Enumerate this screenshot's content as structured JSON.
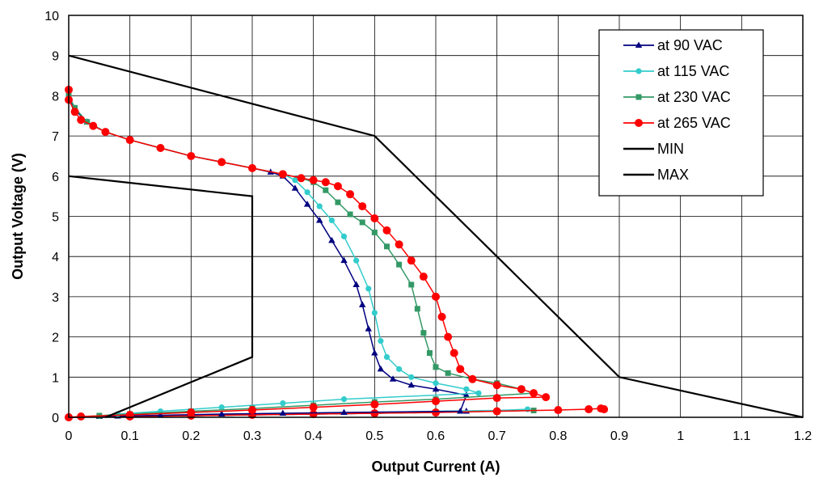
{
  "chart_data": {
    "type": "line",
    "title": "",
    "xlabel": "Output Current (A)",
    "ylabel": "Output Voltage (V)",
    "xlim": [
      0,
      1.2
    ],
    "ylim": [
      0,
      10
    ],
    "xticks": [
      "0",
      "0.1",
      "0.2",
      "0.3",
      "0.4",
      "0.5",
      "0.6",
      "0.7",
      "0.8",
      "0.9",
      "1",
      "1.1",
      "1.2"
    ],
    "yticks": [
      "0",
      "1",
      "2",
      "3",
      "4",
      "5",
      "6",
      "7",
      "8",
      "9",
      "10"
    ],
    "grid": true,
    "legend_position": "top-right",
    "series": [
      {
        "name": "at 90 VAC",
        "color": "#000080",
        "marker": "triangle",
        "x": [
          0.0,
          0.01,
          0.03,
          0.06,
          0.1,
          0.15,
          0.2,
          0.25,
          0.3,
          0.33,
          0.35,
          0.37,
          0.39,
          0.41,
          0.43,
          0.45,
          0.47,
          0.48,
          0.49,
          0.5,
          0.51,
          0.53,
          0.56,
          0.6,
          0.65,
          0.64,
          0.45,
          0.35,
          0.25,
          0.15,
          0.08,
          0.05,
          0.0
        ],
        "y": [
          8.0,
          7.65,
          7.35,
          7.1,
          6.9,
          6.7,
          6.5,
          6.35,
          6.2,
          6.1,
          6.0,
          5.7,
          5.3,
          4.9,
          4.4,
          3.9,
          3.3,
          2.8,
          2.2,
          1.6,
          1.2,
          0.95,
          0.8,
          0.7,
          0.55,
          0.15,
          0.12,
          0.1,
          0.08,
          0.05,
          0.03,
          0.02,
          0.0
        ]
      },
      {
        "name": "at 115 VAC",
        "color": "#33CCCC",
        "marker": "circle",
        "x": [
          0.0,
          0.01,
          0.03,
          0.06,
          0.1,
          0.15,
          0.2,
          0.25,
          0.3,
          0.35,
          0.37,
          0.39,
          0.41,
          0.43,
          0.45,
          0.47,
          0.49,
          0.5,
          0.51,
          0.52,
          0.54,
          0.56,
          0.6,
          0.65,
          0.67,
          0.45,
          0.35,
          0.25,
          0.15,
          0.08,
          0.05,
          0.0
        ],
        "y": [
          8.0,
          7.7,
          7.35,
          7.1,
          6.9,
          6.7,
          6.5,
          6.35,
          6.2,
          6.05,
          5.9,
          5.6,
          5.25,
          4.9,
          4.5,
          3.9,
          3.2,
          2.6,
          1.9,
          1.5,
          1.2,
          1.0,
          0.85,
          0.7,
          0.6,
          0.45,
          0.35,
          0.25,
          0.15,
          0.08,
          0.03,
          0.0
        ]
      },
      {
        "name": "at 230 VAC",
        "color": "#339966",
        "marker": "square",
        "x": [
          0.0,
          0.01,
          0.03,
          0.06,
          0.1,
          0.15,
          0.2,
          0.25,
          0.3,
          0.35,
          0.38,
          0.4,
          0.42,
          0.44,
          0.46,
          0.48,
          0.5,
          0.52,
          0.54,
          0.56,
          0.57,
          0.58,
          0.59,
          0.6,
          0.62,
          0.66,
          0.7,
          0.74,
          0.76,
          0.6,
          0.5,
          0.4,
          0.3,
          0.2,
          0.1,
          0.05,
          0.0
        ],
        "y": [
          8.0,
          7.7,
          7.35,
          7.1,
          6.9,
          6.7,
          6.5,
          6.35,
          6.2,
          6.05,
          5.95,
          5.85,
          5.65,
          5.35,
          5.05,
          4.85,
          4.6,
          4.25,
          3.8,
          3.3,
          2.7,
          2.1,
          1.6,
          1.25,
          1.1,
          0.95,
          0.85,
          0.7,
          0.6,
          0.45,
          0.38,
          0.3,
          0.22,
          0.15,
          0.08,
          0.04,
          0.0
        ]
      },
      {
        "name": "at 265 VAC",
        "color": "#FF0000",
        "marker": "circle-large",
        "x": [
          0.0,
          0.0,
          0.01,
          0.02,
          0.04,
          0.06,
          0.1,
          0.15,
          0.2,
          0.25,
          0.3,
          0.35,
          0.38,
          0.4,
          0.42,
          0.44,
          0.46,
          0.48,
          0.5,
          0.52,
          0.54,
          0.56,
          0.58,
          0.6,
          0.61,
          0.62,
          0.63,
          0.64,
          0.66,
          0.7,
          0.74,
          0.76,
          0.78,
          0.7,
          0.6,
          0.5,
          0.4,
          0.3,
          0.2,
          0.1,
          0.02,
          0.0
        ],
        "y": [
          8.15,
          7.9,
          7.6,
          7.4,
          7.25,
          7.1,
          6.9,
          6.7,
          6.5,
          6.35,
          6.2,
          6.05,
          5.95,
          5.9,
          5.85,
          5.75,
          5.55,
          5.25,
          4.95,
          4.65,
          4.3,
          3.9,
          3.5,
          3.0,
          2.5,
          2.0,
          1.6,
          1.2,
          0.95,
          0.8,
          0.7,
          0.6,
          0.5,
          0.48,
          0.4,
          0.32,
          0.25,
          0.18,
          0.12,
          0.06,
          0.02,
          0.0
        ]
      },
      {
        "name": "MIN",
        "color": "#000000",
        "marker": "none",
        "x": [
          0,
          0.3,
          0.3,
          0.3,
          0.06
        ],
        "y": [
          6.0,
          5.5,
          5.5,
          1.5,
          0.0
        ]
      },
      {
        "name": "MAX",
        "color": "#000000",
        "marker": "none",
        "x": [
          0,
          0.5,
          0.9,
          1.2
        ],
        "y": [
          9.0,
          7.0,
          1.0,
          0.0
        ]
      }
    ],
    "tail_series": [
      {
        "color": "#000080",
        "marker": "triangle",
        "x": [
          0.0,
          0.1,
          0.2,
          0.3,
          0.4,
          0.5,
          0.6,
          0.65
        ],
        "y": [
          0.0,
          0.02,
          0.04,
          0.06,
          0.08,
          0.1,
          0.13,
          0.15
        ]
      },
      {
        "color": "#33CCCC",
        "marker": "circle",
        "x": [
          0.0,
          0.1,
          0.2,
          0.3,
          0.4,
          0.5,
          0.6,
          0.7,
          0.75
        ],
        "y": [
          0.0,
          0.03,
          0.05,
          0.07,
          0.1,
          0.12,
          0.15,
          0.17,
          0.2
        ]
      },
      {
        "color": "#339966",
        "marker": "square",
        "x": [
          0.0,
          0.1,
          0.2,
          0.3,
          0.4,
          0.5,
          0.6,
          0.7,
          0.76
        ],
        "y": [
          0.0,
          0.02,
          0.04,
          0.06,
          0.08,
          0.1,
          0.12,
          0.15,
          0.17
        ]
      },
      {
        "color": "#FF0000",
        "marker": "circle-large",
        "x": [
          0.0,
          0.1,
          0.2,
          0.3,
          0.4,
          0.5,
          0.6,
          0.7,
          0.8,
          0.85,
          0.87,
          0.875
        ],
        "y": [
          0.0,
          0.02,
          0.04,
          0.06,
          0.08,
          0.1,
          0.12,
          0.15,
          0.18,
          0.2,
          0.22,
          0.2
        ]
      }
    ]
  }
}
